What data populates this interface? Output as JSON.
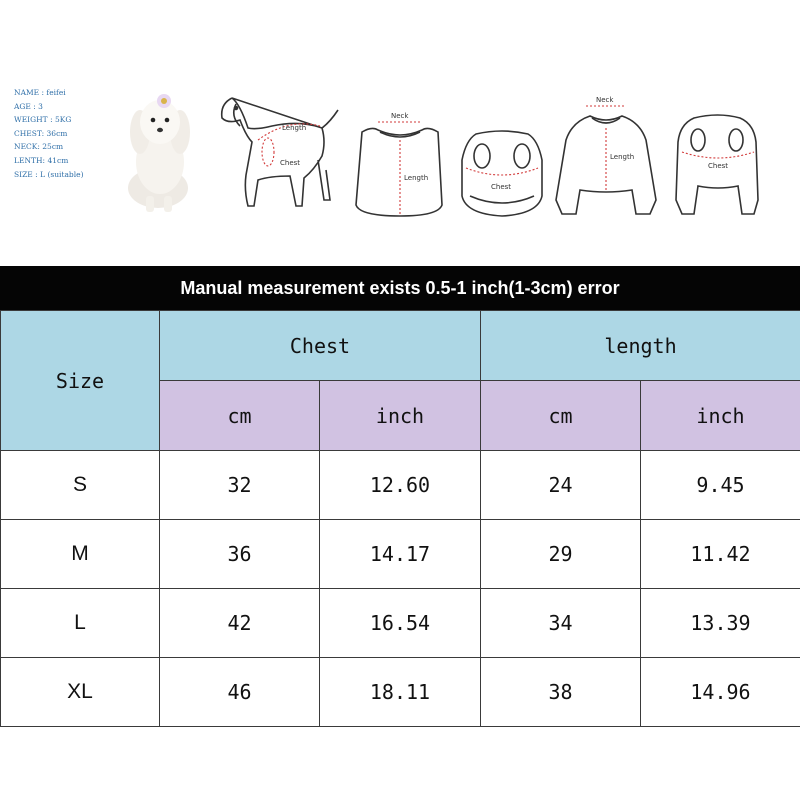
{
  "profile": {
    "name": "NAME : feifei",
    "age": "AGE : 3",
    "weight": "WEIGHT : 5KG",
    "chest": "CHEST: 36cm",
    "neck": "NECK: 25cm",
    "length": "LENTH: 41cm",
    "size": "SIZE : L (suitable)"
  },
  "illustrations": {
    "dog_length": "Length",
    "dog_chest": "Chest",
    "shirt_neck": "Neck",
    "shirt_length": "Length",
    "shirt_chest": "Chest",
    "jumpsuit_neck": "Neck",
    "jumpsuit_length": "Length",
    "jumpsuit_chest": "Chest"
  },
  "banner": "Manual measurement exists 0.5-1 inch(1-3cm) error",
  "table": {
    "size_header": "Size",
    "chest_header": "Chest",
    "length_header": "length",
    "units": [
      "cm",
      "inch",
      "cm",
      "inch"
    ],
    "rows": [
      {
        "size": "S",
        "chest_cm": "32",
        "chest_in": "12.60",
        "length_cm": "24",
        "length_in": "9.45"
      },
      {
        "size": "M",
        "chest_cm": "36",
        "chest_in": "14.17",
        "length_cm": "29",
        "length_in": "11.42"
      },
      {
        "size": "L",
        "chest_cm": "42",
        "chest_in": "16.54",
        "length_cm": "34",
        "length_in": "13.39"
      },
      {
        "size": "XL",
        "chest_cm": "46",
        "chest_in": "18.11",
        "length_cm": "38",
        "length_in": "14.96"
      }
    ]
  },
  "colors": {
    "header_blue": "#add7e5",
    "header_purple": "#d1c2e2",
    "banner": "#050505",
    "measure_red": "#d23a3a"
  }
}
